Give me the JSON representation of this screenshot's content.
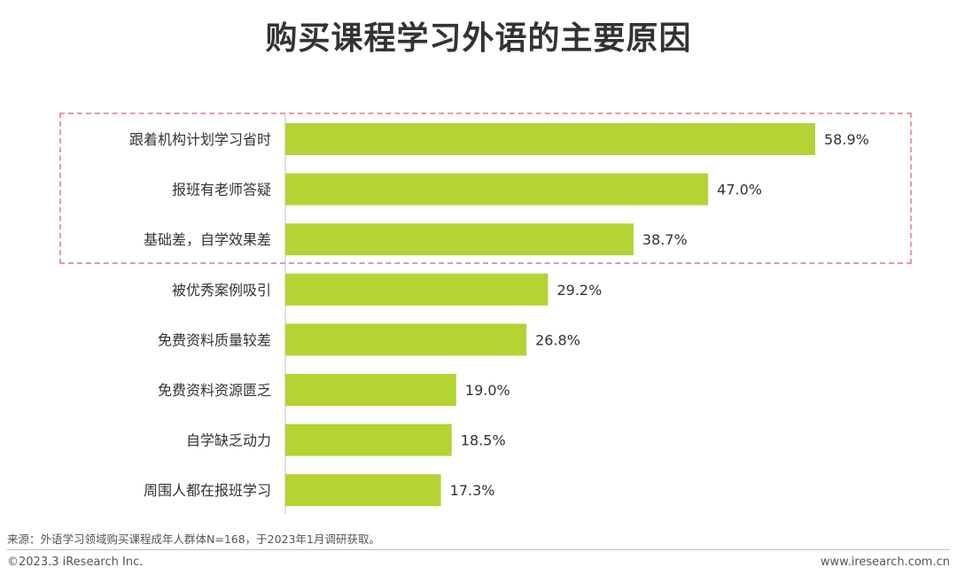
{
  "title": "购买课程学习外语的主要原因",
  "chart_data": {
    "type": "bar",
    "orientation": "horizontal",
    "title": "购买课程学习外语的主要原因",
    "categories": [
      "跟着机构计划学习省时",
      "报班有老师答疑",
      "基础差，自学效果差",
      "被优秀案例吸引",
      "免费资料质量较差",
      "免费资料资源匮乏",
      "自学缺乏动力",
      "周围人都在报班学习"
    ],
    "values": [
      58.9,
      47.0,
      38.7,
      29.2,
      26.8,
      19.0,
      18.5,
      17.3
    ],
    "value_labels": [
      "58.9%",
      "47.0%",
      "38.7%",
      "29.2%",
      "26.8%",
      "19.0%",
      "18.5%",
      "17.3%"
    ],
    "unit": "%",
    "xlim": [
      0,
      58.9
    ],
    "highlighted_categories": 3,
    "colors": {
      "bar": "#b4d334",
      "axis": "#bfbfbf",
      "highlight_border": "#e89a9d"
    },
    "grid": false,
    "legend": "none"
  },
  "source_note": "来源：外语学习领域购买课程成年人群体N=168，于2023年1月调研获取。",
  "footer": {
    "copyright": "©2023.3 iResearch Inc.",
    "website": "www.iresearch.com.cn"
  }
}
